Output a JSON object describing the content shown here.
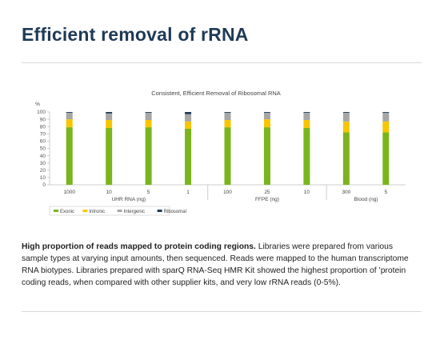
{
  "page": {
    "title": "Efficient removal of rRNA",
    "caption_lead": "High proportion of reads mapped to protein coding regions.",
    "caption_body": " Libraries were prepared from various sample types at varying input amounts, then sequenced. Reads were mapped to the human transcriptome RNA biotypes. Libraries prepared with sparQ RNA-Seq HMR Kit showed the highest proportion of ’protein coding reads, when compared with other supplier kits, and very low rRNA reads (0-5%)."
  },
  "chart_data": {
    "type": "bar",
    "stacked": true,
    "title": "Consistent, Efficient Removal of Ribosomal RNA",
    "ylabel": "%",
    "ylim": [
      0,
      100
    ],
    "yticks": [
      "0",
      "10",
      "20",
      "30",
      "40",
      "50",
      "60",
      "70",
      "80",
      "90",
      "100"
    ],
    "categories": [
      "1000",
      "10",
      "5",
      "1",
      "100",
      "25",
      "10",
      "300",
      "5"
    ],
    "groups": [
      {
        "label": "UHR RNA (ng)",
        "indices": [
          0,
          1,
          2,
          3
        ]
      },
      {
        "label": "FFPE (ng)",
        "indices": [
          4,
          5,
          6
        ]
      },
      {
        "label": "Blood (ng)",
        "indices": [
          7,
          8
        ]
      }
    ],
    "series": [
      {
        "name": "Exonic",
        "color": "#7ab51d",
        "values": [
          79,
          78,
          79,
          77,
          79,
          79,
          78,
          72,
          72
        ]
      },
      {
        "name": "Intronic",
        "color": "#f7c600",
        "values": [
          11,
          11,
          10,
          10,
          10,
          11,
          11,
          15,
          15
        ]
      },
      {
        "name": "Intergenic",
        "color": "#a6a6a6",
        "values": [
          9,
          9,
          10,
          10,
          10,
          9,
          10,
          12,
          12
        ]
      },
      {
        "name": "Ribosomal",
        "color": "#1f3a56",
        "values": [
          1,
          2,
          1,
          3,
          1,
          1,
          1,
          1,
          1
        ]
      }
    ],
    "grid": false,
    "legend_position": "bottom-left"
  }
}
